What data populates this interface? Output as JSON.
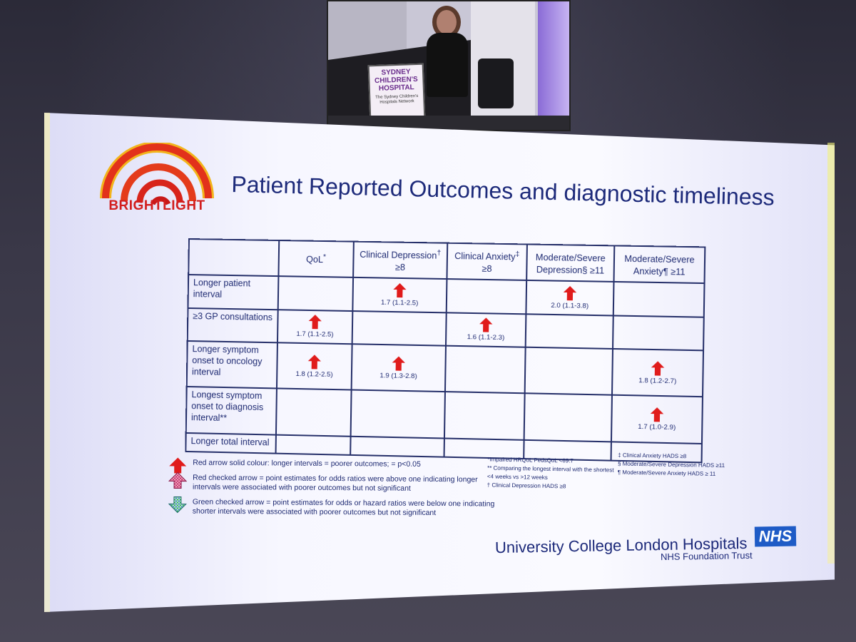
{
  "video_feed": {
    "podium_sign_lines": [
      "SYDNEY",
      "CHILDREN'S",
      "HOSPITAL"
    ],
    "podium_sign_subtext": "The Sydney Children's Hospitals Network"
  },
  "slide": {
    "logo_text": "BRIGHTLIGHT",
    "title": "Patient Reported Outcomes and diagnostic timeliness",
    "table": {
      "columns": [
        {
          "label": "QoL",
          "sup": "*",
          "line2": ""
        },
        {
          "label": "Clinical Depression",
          "sup": "†",
          "line2": "≥8"
        },
        {
          "label": "Clinical Anxiety",
          "sup": "‡",
          "line2": "≥8"
        },
        {
          "label": "Moderate/Severe",
          "sup": "",
          "line2": "Depression§ ≥11"
        },
        {
          "label": "Moderate/Severe",
          "sup": "",
          "line2": "Anxiety¶ ≥11"
        }
      ],
      "rows": [
        {
          "label": "Longer patient interval",
          "cells": [
            "",
            "1.7 (1.1-2.5)",
            "",
            "2.0  (1.1-3.8)",
            ""
          ]
        },
        {
          "label": "≥3 GP consultations",
          "cells": [
            "1.7 (1.1-2.5)",
            "",
            "1.6  (1.1-2.3)",
            "",
            ""
          ]
        },
        {
          "label": "Longer symptom onset to oncology interval",
          "cells": [
            "1.8  (1.2-2.5)",
            "1.9 (1.3-2.8)",
            "",
            "",
            "1.8 (1.2-2.7)"
          ]
        },
        {
          "label": "Longest symptom onset to diagnosis interval**",
          "cells": [
            "",
            "",
            "",
            "",
            "1.7 (1.0-2.9)"
          ]
        },
        {
          "label": "Longer total interval",
          "cells": [
            "",
            "",
            "",
            "",
            ""
          ]
        }
      ]
    },
    "legend": [
      {
        "icon": "red-solid-arrow-icon",
        "text": "Red arrow solid colour: longer intervals = poorer outcomes; = p<0.05"
      },
      {
        "icon": "red-checked-arrow-icon",
        "text": "Red checked arrow = point estimates for odds ratios were above one indicating longer intervals were associated with poorer outcomes but not significant"
      },
      {
        "icon": "green-checked-arrow-icon",
        "text": "Green checked arrow = point estimates for odds or hazard ratios were below one indicating shorter intervals were associated with poorer outcomes but not significant"
      }
    ],
    "notes_mid": [
      "*Impaired HRQoL PedsQoL <69.7",
      "** Comparing the longest interval with the shortest  <4 weeks vs >12 weeks",
      "† Clinical Depression HADS ≥8"
    ],
    "notes_right": [
      "‡ Clinical Anxiety HADS ≥8",
      "§ Moderate/Severe Depression HADS ≥11",
      "¶ Moderate/Severe Anxiety HADS ≥ 11"
    ],
    "footer_org": "University College London Hospitals",
    "footer_badge": "NHS",
    "footer_trust": "NHS Foundation Trust",
    "colors": {
      "title": "#1d2a7a",
      "arrow": "#e01b1b",
      "nhs_blue": "#1e5bc6",
      "logo_red": "#d21e1e"
    }
  }
}
